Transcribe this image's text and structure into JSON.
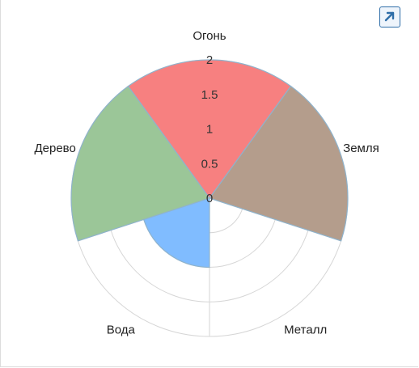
{
  "chart_data": {
    "type": "polar-area",
    "categories": [
      "Огонь",
      "Земля",
      "Металл",
      "Вода",
      "Дерево"
    ],
    "values": [
      2,
      2,
      0,
      1,
      2
    ],
    "colors": [
      "#f78080",
      "#b49d8c",
      "#ffffff",
      "#80bcff",
      "#9bc698"
    ],
    "rlim": [
      0,
      2
    ],
    "rticks": [
      "0",
      "0.5",
      "1",
      "1.5",
      "2"
    ],
    "grid": true,
    "legend": "none"
  },
  "toolbar": {
    "expand_icon": "expand-arrow-icon"
  }
}
